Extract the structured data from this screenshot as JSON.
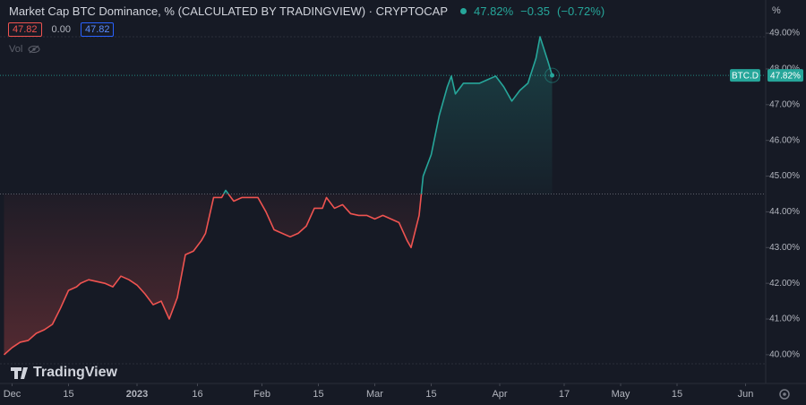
{
  "header": {
    "title": "Market Cap BTC Dominance, % (CALCULATED BY TRADINGVIEW) · CRYPTOCAP",
    "last": "47.82%",
    "change": "−0.35",
    "change_pct": "(−0.72%)",
    "box_1": "47.82",
    "box_2": "0.00",
    "box_3": "47.82",
    "vol": "Vol",
    "unit": "%",
    "brand": "TradingView"
  },
  "chart_data": {
    "type": "baseline",
    "x": [
      "2022-11-29",
      "2022-12-01",
      "2022-12-03",
      "2022-12-05",
      "2022-12-07",
      "2022-12-09",
      "2022-12-11",
      "2022-12-13",
      "2022-12-15",
      "2022-12-17",
      "2022-12-18",
      "2022-12-20",
      "2022-12-22",
      "2022-12-24",
      "2022-12-26",
      "2022-12-28",
      "2022-12-30",
      "2023-01-01",
      "2023-01-03",
      "2023-01-05",
      "2023-01-07",
      "2023-01-09",
      "2023-01-11",
      "2023-01-13",
      "2023-01-15",
      "2023-01-17",
      "2023-01-18",
      "2023-01-20",
      "2023-01-22",
      "2023-01-23",
      "2023-01-25",
      "2023-01-27",
      "2023-01-29",
      "2023-01-31",
      "2023-02-02",
      "2023-02-04",
      "2023-02-06",
      "2023-02-08",
      "2023-02-10",
      "2023-02-12",
      "2023-02-14",
      "2023-02-16",
      "2023-02-17",
      "2023-02-19",
      "2023-02-21",
      "2023-02-23",
      "2023-02-25",
      "2023-02-27",
      "2023-03-01",
      "2023-03-03",
      "2023-03-05",
      "2023-03-07",
      "2023-03-09",
      "2023-03-10",
      "2023-03-12",
      "2023-03-13",
      "2023-03-15",
      "2023-03-17",
      "2023-03-19",
      "2023-03-20",
      "2023-03-21",
      "2023-03-23",
      "2023-03-25",
      "2023-03-27",
      "2023-03-29",
      "2023-03-31",
      "2023-04-02",
      "2023-04-04",
      "2023-04-06",
      "2023-04-08",
      "2023-04-10",
      "2023-04-11",
      "2023-04-13",
      "2023-04-14"
    ],
    "series": [
      {
        "name": "BTC.D",
        "color_up": "#26a69a",
        "color_down": "#ef5350",
        "values": [
          40.0,
          40.2,
          40.35,
          40.4,
          40.6,
          40.7,
          40.85,
          41.3,
          41.8,
          41.9,
          42.0,
          42.1,
          42.05,
          42.0,
          41.9,
          42.2,
          42.1,
          41.95,
          41.7,
          41.4,
          41.5,
          41.0,
          41.6,
          42.8,
          42.9,
          43.2,
          43.4,
          44.4,
          44.4,
          44.6,
          44.3,
          44.4,
          44.4,
          44.4,
          44.0,
          43.5,
          43.4,
          43.3,
          43.4,
          43.6,
          44.1,
          44.1,
          44.4,
          44.1,
          44.2,
          43.95,
          43.9,
          43.9,
          43.8,
          43.9,
          43.8,
          43.7,
          43.2,
          43.0,
          43.9,
          45.0,
          45.6,
          46.7,
          47.5,
          47.8,
          47.3,
          47.6,
          47.6,
          47.6,
          47.7,
          47.8,
          47.5,
          47.1,
          47.4,
          47.6,
          48.3,
          48.9,
          48.2,
          47.82
        ],
        "last_value_label": "47.82%"
      }
    ],
    "baseline": 44.5,
    "xlim": [
      "2022-11-28",
      "2023-06-06"
    ],
    "xticks": [
      {
        "value": "2022-12-01",
        "label": "Dec"
      },
      {
        "value": "2022-12-15",
        "label": "15"
      },
      {
        "value": "2023-01-01",
        "label": "2023"
      },
      {
        "value": "2023-01-16",
        "label": "16"
      },
      {
        "value": "2023-02-01",
        "label": "Feb"
      },
      {
        "value": "2023-02-15",
        "label": "15"
      },
      {
        "value": "2023-03-01",
        "label": "Mar"
      },
      {
        "value": "2023-03-15",
        "label": "15"
      },
      {
        "value": "2023-04-01",
        "label": "Apr"
      },
      {
        "value": "2023-04-17",
        "label": "17"
      },
      {
        "value": "2023-05-01",
        "label": "May"
      },
      {
        "value": "2023-05-15",
        "label": "15"
      },
      {
        "value": "2023-06-01",
        "label": "Jun"
      }
    ],
    "ylim": [
      39.27,
      49.93
    ],
    "yticks": [
      {
        "value": 40,
        "label": "40.00%"
      },
      {
        "value": 41,
        "label": "41.00%"
      },
      {
        "value": 42,
        "label": "42.00%"
      },
      {
        "value": 43,
        "label": "43.00%"
      },
      {
        "value": 44,
        "label": "44.00%"
      },
      {
        "value": 45,
        "label": "45.00%"
      },
      {
        "value": 46,
        "label": "46.00%"
      },
      {
        "value": 47,
        "label": "47.00%"
      },
      {
        "value": 48,
        "label": "48.00%"
      },
      {
        "value": 49,
        "label": "49.00%"
      }
    ]
  }
}
